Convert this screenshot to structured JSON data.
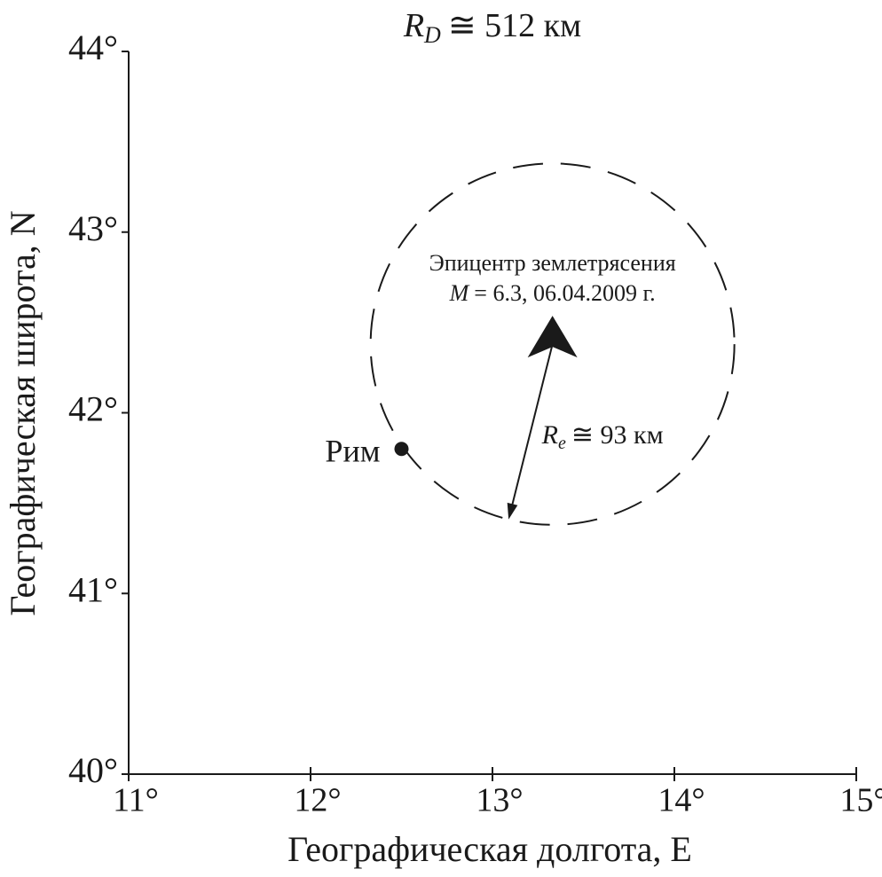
{
  "chart_data": {
    "type": "scatter",
    "title": {
      "symbol": "R",
      "subscript": "D",
      "text": "≅ 512 км"
    },
    "xlabel": "Географическая долгота, E",
    "ylabel": "Географическая широта, N",
    "xlim": [
      11,
      15
    ],
    "ylim": [
      40,
      44
    ],
    "xticks": [
      {
        "value": 11,
        "label": "11°"
      },
      {
        "value": 12,
        "label": "12°"
      },
      {
        "value": 13,
        "label": "13°"
      },
      {
        "value": 14,
        "label": "14°"
      },
      {
        "value": 15,
        "label": "15°"
      }
    ],
    "yticks": [
      {
        "value": 40,
        "label": "40°"
      },
      {
        "value": 41,
        "label": "41°"
      },
      {
        "value": 42,
        "label": "42°"
      },
      {
        "value": 43,
        "label": "43°"
      },
      {
        "value": 44,
        "label": "44°"
      }
    ],
    "points": [
      {
        "name": "Рим",
        "x": 12.5,
        "y": 41.8
      }
    ],
    "epicenter": {
      "x": 13.33,
      "y": 42.38,
      "radius": 1,
      "label": "Эпицентр землетрясения",
      "magnitude_symbol": "M",
      "details": "= 6.3, 06.04.2009 г.",
      "radius_symbol": "R",
      "radius_subscript": "e",
      "radius_text": "≅ 93 км"
    }
  }
}
